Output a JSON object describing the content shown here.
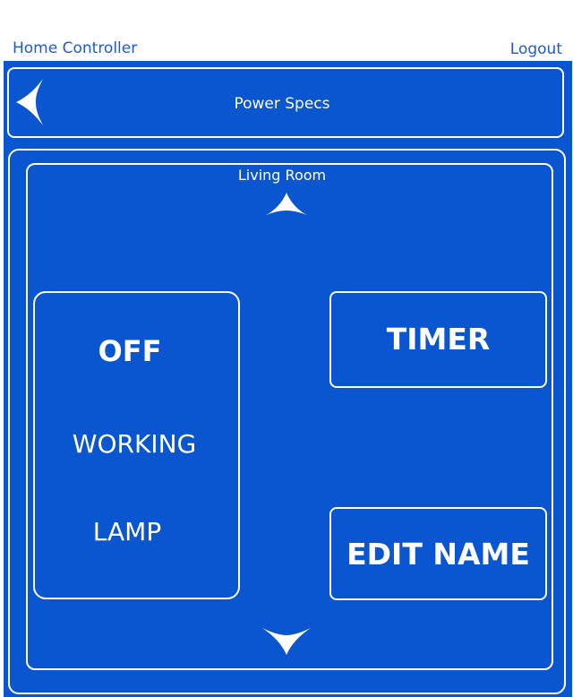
{
  "topbar": {
    "app_title": "Home Controller",
    "logout_label": "Logout"
  },
  "header": {
    "title": "Power Specs",
    "back_icon": "back-arrow-icon"
  },
  "room": {
    "name": "Living Room",
    "prev_icon": "arrow-up-icon",
    "next_icon": "arrow-down-icon"
  },
  "device": {
    "state": "OFF",
    "mode": "WORKING",
    "name": "LAMP"
  },
  "actions": {
    "timer_label": "TIMER",
    "edit_name_label": "EDIT NAME"
  },
  "colors": {
    "primary": "#0a55d0",
    "link": "#1e5ad6",
    "foreground": "#ffffff"
  }
}
